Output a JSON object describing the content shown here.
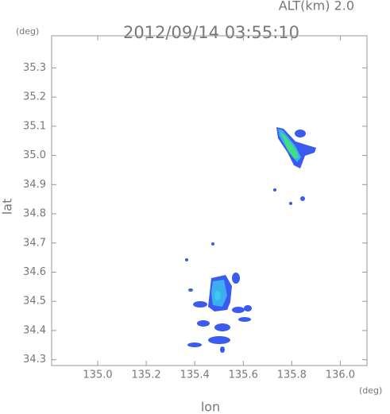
{
  "chart_data": {
    "type": "map",
    "title": "2012/09/14 03:55:10",
    "altitude_label": "ALT(km) 2.0",
    "xlabel": "lon",
    "ylabel": "lat",
    "x_unit": "(deg)",
    "y_unit": "(deg)",
    "xlim": [
      134.81,
      136.11
    ],
    "ylim": [
      34.28,
      35.41
    ],
    "xticks": [
      {
        "value": 135.0,
        "label": "135.0"
      },
      135.2,
      135.4,
      135.6,
      135.8,
      {
        "value": 136.0,
        "label": "136.0"
      }
    ],
    "yticks": [
      34.3,
      34.4,
      34.5,
      34.6,
      34.7,
      34.8,
      34.9,
      {
        "value": 35.0,
        "label": "35.0"
      },
      35.1,
      35.2,
      35.3
    ]
  }
}
